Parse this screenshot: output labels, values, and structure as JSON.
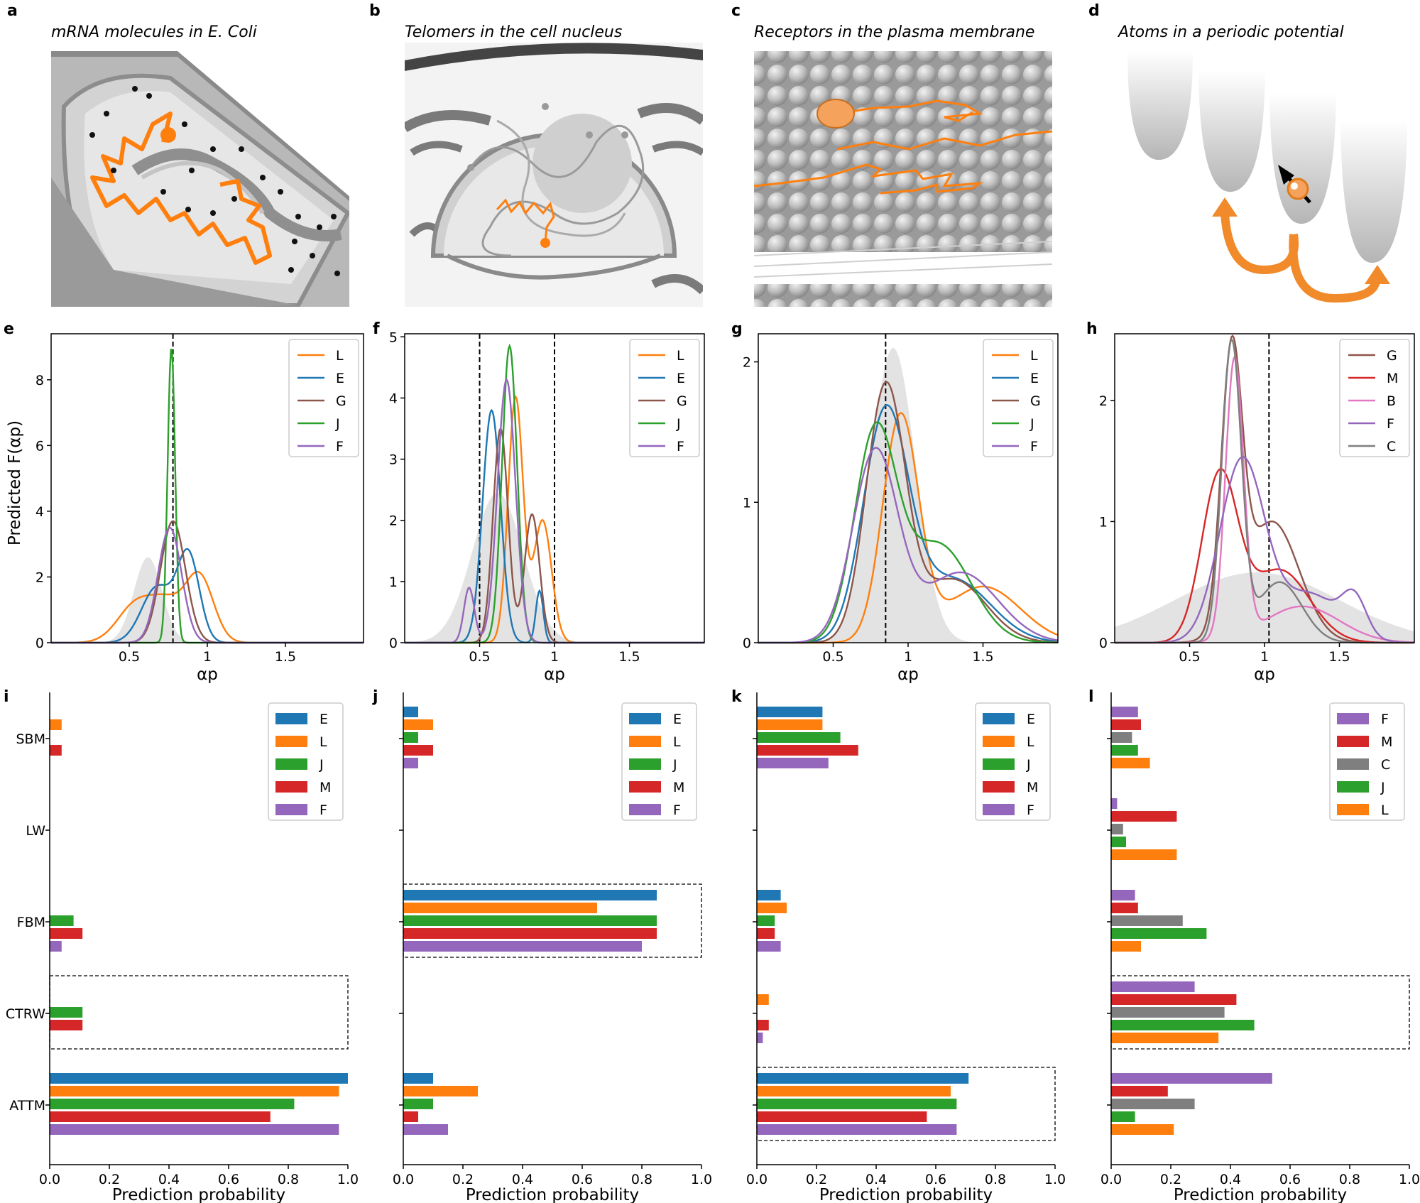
{
  "figure": {
    "panel_labels": [
      "a",
      "b",
      "c",
      "d",
      "e",
      "f",
      "g",
      "h",
      "i",
      "j",
      "k",
      "l"
    ],
    "titles": [
      "mRNA molecules in E. Coli",
      "Telomers in the cell nucleus",
      "Receptors in the plasma membrane",
      "Atoms in a periodic potential"
    ],
    "density_ylabel": "Predicted F(αp)",
    "density_xlabel": "αp",
    "bar_xlabel": "Prediction probability",
    "bar_categories": [
      "SBM",
      "LW",
      "FBM",
      "CTRW",
      "ATTM"
    ]
  },
  "colors": {
    "E": "#1f77b4",
    "L": "#ff7f0e",
    "G": "#8c564b",
    "J": "#2ca02c",
    "F": "#9467bd",
    "M": "#d62728",
    "B": "#e377c2",
    "C": "#7f7f7f"
  },
  "chart_data": [
    {
      "id": "e",
      "type": "line",
      "xlabel": "αp",
      "ylabel": "Predicted F(αp)",
      "xlim": [
        0.0,
        2.0
      ],
      "ylim": [
        0,
        9.4
      ],
      "xticks": [
        0.5,
        1.0,
        1.5
      ],
      "yticks": [
        0,
        2,
        4,
        6,
        8
      ],
      "vlines": [
        0.78
      ],
      "background": {
        "center": 0.62,
        "width": 0.09,
        "height": 2.6
      },
      "legend": [
        "L",
        "E",
        "G",
        "J",
        "F"
      ],
      "series": [
        {
          "name": "L",
          "peaks": [
            [
              0.55,
              0.12,
              1.2
            ],
            [
              0.95,
              0.09,
              2.0
            ],
            [
              0.75,
              0.1,
              1.0
            ]
          ]
        },
        {
          "name": "E",
          "peaks": [
            [
              0.88,
              0.07,
              2.6
            ],
            [
              0.68,
              0.1,
              1.7
            ]
          ]
        },
        {
          "name": "G",
          "peaks": [
            [
              0.78,
              0.08,
              3.7
            ]
          ]
        },
        {
          "name": "J",
          "peaks": [
            [
              0.77,
              0.024,
              9.0
            ]
          ]
        },
        {
          "name": "F",
          "peaks": [
            [
              0.76,
              0.075,
              3.5
            ]
          ]
        }
      ]
    },
    {
      "id": "f",
      "type": "line",
      "xlabel": "αp",
      "ylabel": "",
      "xlim": [
        0.0,
        2.0
      ],
      "ylim": [
        0,
        5.05
      ],
      "xticks": [
        0.5,
        1.0,
        1.5
      ],
      "yticks": [
        0,
        1,
        2,
        3,
        4,
        5
      ],
      "vlines": [
        0.5,
        1.0
      ],
      "background": {
        "center": 0.62,
        "width": 0.17,
        "height": 2.45
      },
      "legend": [
        "L",
        "E",
        "G",
        "J",
        "F"
      ],
      "series": [
        {
          "name": "L",
          "peaks": [
            [
              0.74,
              0.05,
              4.0
            ],
            [
              0.92,
              0.06,
              2.0
            ]
          ]
        },
        {
          "name": "E",
          "peaks": [
            [
              0.58,
              0.06,
              3.8
            ],
            [
              0.9,
              0.025,
              0.85
            ]
          ]
        },
        {
          "name": "G",
          "peaks": [
            [
              0.64,
              0.05,
              3.5
            ],
            [
              0.85,
              0.05,
              2.1
            ]
          ]
        },
        {
          "name": "J",
          "peaks": [
            [
              0.7,
              0.05,
              4.85
            ]
          ]
        },
        {
          "name": "F",
          "peaks": [
            [
              0.68,
              0.06,
              4.3
            ],
            [
              0.43,
              0.035,
              0.9
            ]
          ]
        }
      ]
    },
    {
      "id": "g",
      "type": "line",
      "xlabel": "αp",
      "ylabel": "",
      "xlim": [
        0.0,
        2.0
      ],
      "ylim": [
        0,
        2.2
      ],
      "xticks": [
        0.5,
        1.0,
        1.5
      ],
      "yticks": [
        0,
        1,
        2
      ],
      "vlines": [
        0.85
      ],
      "background": {
        "center": 0.9,
        "width": 0.15,
        "height": 2.1
      },
      "legend": [
        "L",
        "E",
        "G",
        "J",
        "F"
      ],
      "series": [
        {
          "name": "L",
          "peaks": [
            [
              0.95,
              0.12,
              1.6
            ],
            [
              1.5,
              0.25,
              0.4
            ]
          ]
        },
        {
          "name": "E",
          "peaks": [
            [
              0.85,
              0.15,
              1.6
            ],
            [
              1.3,
              0.25,
              0.45
            ]
          ]
        },
        {
          "name": "G",
          "peaks": [
            [
              0.85,
              0.13,
              1.8
            ],
            [
              1.3,
              0.22,
              0.45
            ]
          ]
        },
        {
          "name": "J",
          "peaks": [
            [
              0.78,
              0.14,
              1.45
            ],
            [
              1.2,
              0.22,
              0.7
            ]
          ]
        },
        {
          "name": "F",
          "peaks": [
            [
              0.78,
              0.15,
              1.35
            ],
            [
              1.35,
              0.25,
              0.5
            ]
          ]
        }
      ]
    },
    {
      "id": "h",
      "type": "line",
      "xlabel": "αp",
      "ylabel": "",
      "xlim": [
        0.0,
        2.0
      ],
      "ylim": [
        0,
        2.55
      ],
      "xticks": [
        0.5,
        1.0,
        1.5
      ],
      "yticks": [
        0,
        1,
        2
      ],
      "vlines": [
        1.03
      ],
      "background": {
        "center": 0.95,
        "width": 0.55,
        "height": 0.58
      },
      "legend": [
        "G",
        "M",
        "B",
        "F",
        "C"
      ],
      "series": [
        {
          "name": "G",
          "peaks": [
            [
              0.78,
              0.07,
              2.2
            ],
            [
              1.05,
              0.18,
              1.0
            ]
          ]
        },
        {
          "name": "M",
          "peaks": [
            [
              0.7,
              0.12,
              1.35
            ],
            [
              1.1,
              0.2,
              0.6
            ]
          ]
        },
        {
          "name": "B",
          "peaks": [
            [
              0.8,
              0.06,
              2.3
            ],
            [
              1.25,
              0.25,
              0.3
            ]
          ]
        },
        {
          "name": "F",
          "peaks": [
            [
              0.85,
              0.15,
              1.5
            ],
            [
              1.6,
              0.08,
              0.3
            ],
            [
              1.3,
              0.2,
              0.4
            ]
          ]
        },
        {
          "name": "C",
          "peaks": [
            [
              0.78,
              0.065,
              2.45
            ],
            [
              1.1,
              0.15,
              0.5
            ]
          ]
        }
      ]
    },
    {
      "id": "i",
      "type": "bar",
      "orientation": "horizontal",
      "categories": [
        "SBM",
        "LW",
        "FBM",
        "CTRW",
        "ATTM"
      ],
      "xlim": [
        0,
        1.0
      ],
      "xticks": [
        0.0,
        0.2,
        0.4,
        0.6,
        0.8,
        1.0
      ],
      "xlabel": "Prediction probability",
      "highlight": "CTRW",
      "series": [
        {
          "name": "E",
          "values": [
            0,
            0,
            0,
            0,
            1.0
          ]
        },
        {
          "name": "L",
          "values": [
            0.04,
            0,
            0,
            0,
            0.97
          ]
        },
        {
          "name": "J",
          "values": [
            0,
            0,
            0.08,
            0.11,
            0.82
          ]
        },
        {
          "name": "M",
          "values": [
            0.04,
            0,
            0.11,
            0.11,
            0.74
          ]
        },
        {
          "name": "F",
          "values": [
            0,
            0,
            0.04,
            0,
            0.97
          ]
        }
      ]
    },
    {
      "id": "j",
      "type": "bar",
      "orientation": "horizontal",
      "categories": [
        "SBM",
        "LW",
        "FBM",
        "CTRW",
        "ATTM"
      ],
      "xlim": [
        0,
        1.0
      ],
      "xticks": [
        0.0,
        0.2,
        0.4,
        0.6,
        0.8,
        1.0
      ],
      "xlabel": "Prediction probability",
      "highlight": "FBM",
      "series": [
        {
          "name": "E",
          "values": [
            0.05,
            0,
            0.85,
            0,
            0.1
          ]
        },
        {
          "name": "L",
          "values": [
            0.1,
            0,
            0.65,
            0,
            0.25
          ]
        },
        {
          "name": "J",
          "values": [
            0.05,
            0,
            0.85,
            0,
            0.1
          ]
        },
        {
          "name": "M",
          "values": [
            0.1,
            0,
            0.85,
            0,
            0.05
          ]
        },
        {
          "name": "F",
          "values": [
            0.05,
            0,
            0.8,
            0,
            0.15
          ]
        }
      ]
    },
    {
      "id": "k",
      "type": "bar",
      "orientation": "horizontal",
      "categories": [
        "SBM",
        "LW",
        "FBM",
        "CTRW",
        "ATTM"
      ],
      "xlim": [
        0,
        1.0
      ],
      "xticks": [
        0.0,
        0.2,
        0.4,
        0.6,
        0.8,
        1.0
      ],
      "xlabel": "Prediction probability",
      "highlight": "ATTM",
      "series": [
        {
          "name": "E",
          "values": [
            0.22,
            0,
            0.08,
            0,
            0.71
          ]
        },
        {
          "name": "L",
          "values": [
            0.22,
            0,
            0.1,
            0.04,
            0.65
          ]
        },
        {
          "name": "J",
          "values": [
            0.28,
            0,
            0.06,
            0,
            0.67
          ]
        },
        {
          "name": "M",
          "values": [
            0.34,
            0,
            0.06,
            0.04,
            0.57
          ]
        },
        {
          "name": "F",
          "values": [
            0.24,
            0,
            0.08,
            0.02,
            0.67
          ]
        }
      ]
    },
    {
      "id": "l",
      "type": "bar",
      "orientation": "horizontal",
      "categories": [
        "SBM",
        "LW",
        "FBM",
        "CTRW",
        "ATTM"
      ],
      "xlim": [
        0,
        1.0
      ],
      "xticks": [
        0.0,
        0.2,
        0.4,
        0.6,
        0.8,
        1.0
      ],
      "xlabel": "Prediction probability",
      "highlight": "CTRW",
      "series": [
        {
          "name": "F",
          "values": [
            0.09,
            0.02,
            0.08,
            0.28,
            0.54
          ]
        },
        {
          "name": "M",
          "values": [
            0.1,
            0.22,
            0.09,
            0.42,
            0.19
          ]
        },
        {
          "name": "C",
          "values": [
            0.07,
            0.04,
            0.24,
            0.38,
            0.28
          ]
        },
        {
          "name": "J",
          "values": [
            0.09,
            0.05,
            0.32,
            0.48,
            0.08
          ]
        },
        {
          "name": "L",
          "values": [
            0.13,
            0.22,
            0.1,
            0.36,
            0.21
          ]
        }
      ]
    }
  ]
}
